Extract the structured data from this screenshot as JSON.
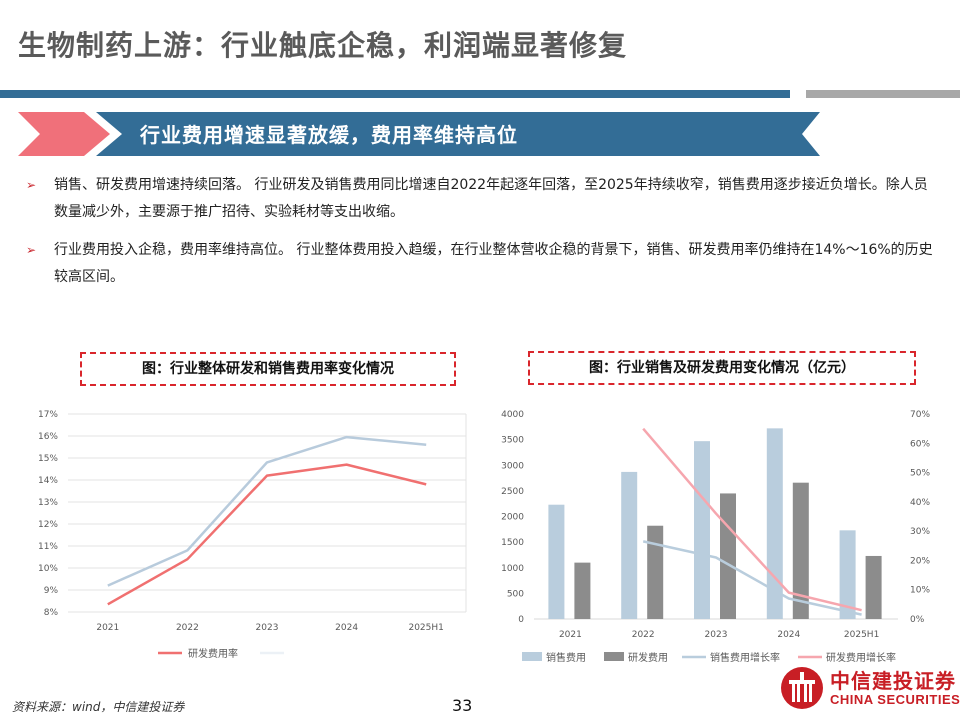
{
  "page": {
    "title": "生物制药上游：行业触底企稳，利润端显著修复",
    "banner": "行业费用增速显著放缓，费用率维持高位",
    "bullets": [
      {
        "text": "销售、研发费用增速持续回落。 行业研发及销售费用同比增速自2022年起逐年回落，至2025年持续收窄，销售费用逐步接近负增长。除人员数量减少外，主要源于推广招待、实验耗材等支出收缩。"
      },
      {
        "text": "行业费用投入企稳，费用率维持高位。 行业整体费用投入趋缓，在行业整体营收企稳的背景下，销售、研发费用率仍维持在14%～16%的历史较高区间。"
      }
    ],
    "source": "资料来源：wind，中信建投证券",
    "page_number": "33",
    "logo": {
      "cn": "中信建投证券",
      "en": "CHINA SECURITIES"
    },
    "colors": {
      "red": "#c9262d",
      "banner_blue": "#336d96",
      "banner_red": "#f0707a",
      "gray": "#a8a8a8"
    }
  },
  "chart_data": [
    {
      "type": "line",
      "title": "图：行业整体研发和销售费用率变化情况",
      "categories": [
        "2021",
        "2022",
        "2023",
        "2024",
        "2025H1"
      ],
      "ylim": [
        8,
        17
      ],
      "y_ticks": [
        "8%",
        "9%",
        "10%",
        "11%",
        "12%",
        "13%",
        "14%",
        "15%",
        "16%",
        "17%"
      ],
      "grid": true,
      "legend_position": "bottom",
      "series": [
        {
          "name": "研发费用率",
          "color": "#f07070",
          "values": [
            8.35,
            10.4,
            14.2,
            14.7,
            13.8
          ]
        },
        {
          "name": "",
          "color": "#b8cbdc",
          "values": [
            9.2,
            10.8,
            14.8,
            15.95,
            15.6
          ]
        }
      ]
    },
    {
      "type": "bar",
      "title": "图：行业销售及研发费用变化情况（亿元）",
      "categories": [
        "2021",
        "2022",
        "2023",
        "2024",
        "2025H1"
      ],
      "ylim": [
        0,
        4000
      ],
      "y_ticks": [
        "0",
        "500",
        "1000",
        "1500",
        "2000",
        "2500",
        "3000",
        "3500",
        "4000"
      ],
      "y2lim": [
        0,
        70
      ],
      "y2_ticks": [
        "0%",
        "10%",
        "20%",
        "30%",
        "40%",
        "50%",
        "60%",
        "70%"
      ],
      "grid": false,
      "legend_position": "bottom",
      "series": [
        {
          "name": "销售费用",
          "kind": "bar",
          "axis": "left",
          "color": "#b9cddd",
          "values": [
            2230,
            2870,
            3470,
            3720,
            1730
          ]
        },
        {
          "name": "研发费用",
          "kind": "bar",
          "axis": "left",
          "color": "#8c8c8c",
          "values": [
            1100,
            1820,
            2450,
            2660,
            1230
          ]
        },
        {
          "name": "销售费用增长率",
          "kind": "line",
          "axis": "right",
          "color": "#b9cddd",
          "values": [
            null,
            26.5,
            21,
            7,
            1.5
          ]
        },
        {
          "name": "研发费用增长率",
          "kind": "line",
          "axis": "right",
          "color": "#f6a6ae",
          "values": [
            null,
            65,
            36,
            9,
            3
          ]
        }
      ]
    }
  ]
}
